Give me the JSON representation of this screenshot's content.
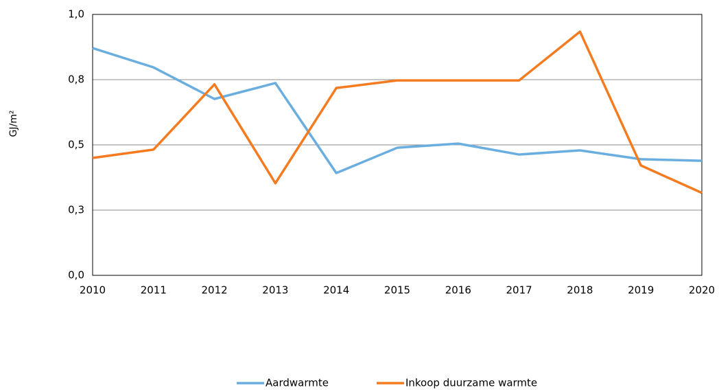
{
  "chart_data": {
    "type": "line",
    "y_label": "GJ/m²",
    "categories": [
      "2010",
      "2011",
      "2012",
      "2013",
      "2014",
      "2015",
      "2016",
      "2017",
      "2018",
      "2019",
      "2020"
    ],
    "series": [
      {
        "name": "Aardwarmte",
        "color": "#6aaee0",
        "values": [
          0.871,
          0.797,
          0.676,
          0.737,
          0.392,
          0.489,
          0.505,
          0.463,
          0.479,
          0.445,
          0.439
        ]
      },
      {
        "name": "Inkoop duurzame warmte",
        "color": "#f47b20",
        "values": [
          0.45,
          0.482,
          0.732,
          0.353,
          0.718,
          0.747,
          0.747,
          0.747,
          0.934,
          0.421,
          0.316
        ]
      }
    ],
    "ylim": [
      0,
      1
    ],
    "yticks": [
      {
        "value": 0,
        "label": "0,0"
      },
      {
        "value": 0.25,
        "label": "0,3"
      },
      {
        "value": 0.5,
        "label": "0,5"
      },
      {
        "value": 0.75,
        "label": "0,8"
      },
      {
        "value": 1,
        "label": "1,0"
      }
    ],
    "grid": true,
    "legend": "bottom"
  }
}
